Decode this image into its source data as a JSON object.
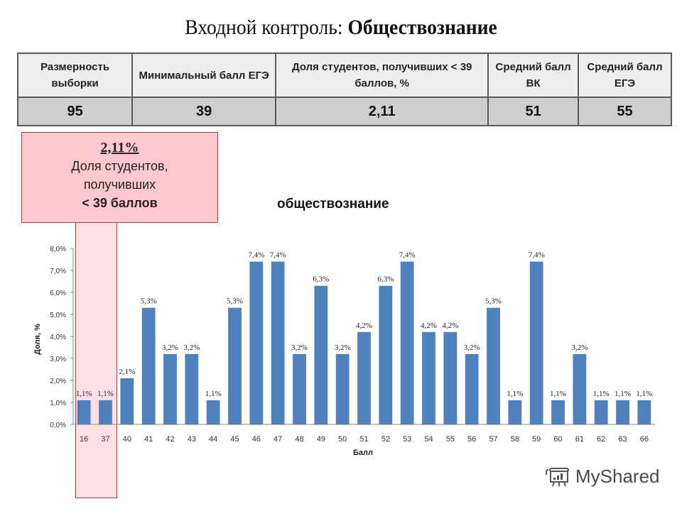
{
  "title": {
    "prefix": "Входной контроль: ",
    "subject": "Обществознание"
  },
  "summary_table": {
    "headers": [
      "Размерность выборки",
      "Минимальный балл ЕГЭ",
      "Доля студентов, получивших < 39 баллов, %",
      "Средний балл ВК",
      "Средний балл ЕГЭ"
    ],
    "values": [
      "95",
      "39",
      "2,11",
      "51",
      "55"
    ]
  },
  "callout": {
    "percent": "2,11%",
    "line1": "Доля студентов,",
    "line2": "получивших",
    "line3": "< 39 баллов",
    "fill_color": "#ffc7ce",
    "border_color": "#a0404a"
  },
  "watermark": {
    "text": "MyShared"
  },
  "chart_data": {
    "type": "bar",
    "title": "обществознание",
    "xlabel": "Балл",
    "ylabel": "Доля, %",
    "ylim": [
      0,
      8
    ],
    "yticks": [
      "0,0%",
      "1,0%",
      "2,0%",
      "3,0%",
      "4,0%",
      "5,0%",
      "6,0%",
      "7,0%",
      "8,0%"
    ],
    "grid": false,
    "legend": null,
    "bar_color": "#4f81bd",
    "categories": [
      "16",
      "37",
      "40",
      "41",
      "42",
      "43",
      "44",
      "45",
      "46",
      "47",
      "48",
      "49",
      "50",
      "51",
      "52",
      "53",
      "54",
      "55",
      "56",
      "57",
      "58",
      "59",
      "60",
      "61",
      "62",
      "63",
      "66"
    ],
    "values": [
      1.1,
      1.1,
      2.1,
      5.3,
      3.2,
      3.2,
      1.1,
      5.3,
      7.4,
      7.4,
      3.2,
      6.3,
      3.2,
      4.2,
      6.3,
      7.4,
      4.2,
      4.2,
      3.2,
      5.3,
      1.1,
      7.4,
      1.1,
      3.2,
      1.1,
      1.1,
      1.1
    ],
    "data_labels": [
      "1,1%",
      "1,1%",
      "2,1%",
      "5,3%",
      "3,2%",
      "3,2%",
      "1,1%",
      "5,3%",
      "7,4%",
      "7,4%",
      "3,2%",
      "6,3%",
      "3,2%",
      "4,2%",
      "6,3%",
      "7,4%",
      "4,2%",
      "4,2%",
      "3,2%",
      "5,3%",
      "1,1%",
      "7,4%",
      "1,1%",
      "3,2%",
      "1,1%",
      "1,1%",
      "1,1%"
    ],
    "highlighted_categories": [
      "16",
      "37"
    ]
  }
}
